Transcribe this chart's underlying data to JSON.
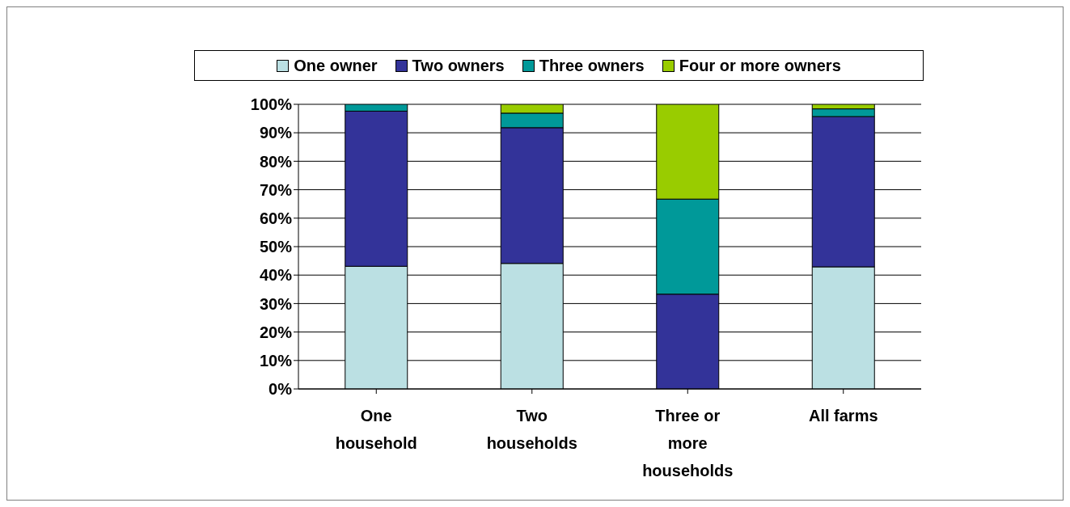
{
  "chart_data": {
    "type": "bar",
    "stacked": true,
    "categories": [
      "One household",
      "Two households",
      "Three or more households",
      "All farms"
    ],
    "series": [
      {
        "name": "One owner",
        "color": "#bbe0e3",
        "values": [
          43.1,
          44.1,
          0,
          42.9
        ]
      },
      {
        "name": "Two owners",
        "color": "#333399",
        "values": [
          54.5,
          47.7,
          33.3,
          52.8
        ]
      },
      {
        "name": "Three owners",
        "color": "#009999",
        "values": [
          2.4,
          5.1,
          33.4,
          2.7
        ]
      },
      {
        "name": "Four or more owners",
        "color": "#99cc00",
        "values": [
          0,
          3.1,
          33.3,
          1.6
        ]
      }
    ],
    "ylim": [
      0,
      100
    ],
    "yticks": [
      {
        "value": 0,
        "label": "0%"
      },
      {
        "value": 10,
        "label": "10%"
      },
      {
        "value": 20,
        "label": "20%"
      },
      {
        "value": 30,
        "label": "30%"
      },
      {
        "value": 40,
        "label": "40%"
      },
      {
        "value": 50,
        "label": "50%"
      },
      {
        "value": 60,
        "label": "60%"
      },
      {
        "value": 70,
        "label": "70%"
      },
      {
        "value": 80,
        "label": "80%"
      },
      {
        "value": 90,
        "label": "90%"
      },
      {
        "value": 100,
        "label": "100%"
      }
    ],
    "grid": "y",
    "legend": "top"
  }
}
